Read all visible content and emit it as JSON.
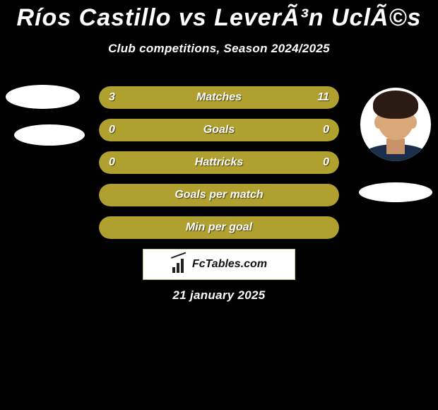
{
  "title": "Ríos Castillo vs LeverÃ³n UclÃ©s",
  "subtitle": "Club competitions, Season 2024/2025",
  "logo_text": "FcTables.com",
  "date_text": "21 january 2025",
  "colors": {
    "background": "#000000",
    "accent_olive": "#b0a030",
    "accent_olive_dark": "#a39428",
    "text": "#ffffff",
    "logo_border": "#c9c08c"
  },
  "bars": [
    {
      "label": "Matches",
      "left_val": "3",
      "right_val": "11",
      "left_pct": 20,
      "right_pct": 80,
      "left_color": "#b0a030",
      "right_color": "#b0a030",
      "show_vals": true
    },
    {
      "label": "Goals",
      "left_val": "0",
      "right_val": "0",
      "left_pct": 50,
      "right_pct": 50,
      "left_color": "#b0a030",
      "right_color": "#b0a030",
      "show_vals": true
    },
    {
      "label": "Hattricks",
      "left_val": "0",
      "right_val": "0",
      "left_pct": 50,
      "right_pct": 50,
      "left_color": "#b0a030",
      "right_color": "#b0a030",
      "show_vals": true
    },
    {
      "label": "Goals per match",
      "left_val": "",
      "right_val": "",
      "left_pct": 100,
      "right_pct": 0,
      "left_color": "#b0a030",
      "right_color": "#b0a030",
      "show_vals": false
    },
    {
      "label": "Min per goal",
      "left_val": "",
      "right_val": "",
      "left_pct": 100,
      "right_pct": 0,
      "left_color": "#b0a030",
      "right_color": "#b0a030",
      "show_vals": false
    }
  ]
}
